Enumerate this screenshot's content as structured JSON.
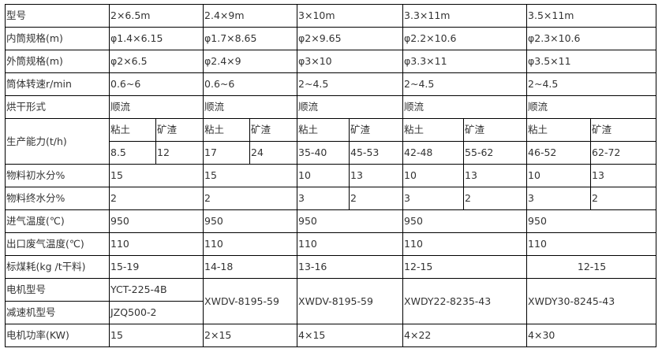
{
  "table": {
    "rows": [
      {
        "label": "型号",
        "values": [
          "2×6.5m",
          "2.4×9m",
          "3×10m",
          "3.3×11m",
          "3.5×11m"
        ]
      },
      {
        "label": "内筒规格(m)",
        "values": [
          "φ1.4×6.15",
          "φ1.7×8.65",
          "φ2×9.65",
          "φ2.2×10.6",
          "φ2.3×10.6"
        ]
      },
      {
        "label": "外筒规格(m)",
        "values": [
          "φ2×6.5",
          "φ2.4×9",
          "φ3×10",
          "φ3.3×11",
          "φ3.5×11"
        ]
      },
      {
        "label": "筒体转速r/min",
        "values": [
          "0.6~6",
          "0.6~6",
          "2~4.5",
          "2~4.5",
          "2~4.5"
        ]
      },
      {
        "label": "烘干形式",
        "values": [
          "顺流",
          "顺流",
          "顺流",
          "顺流",
          "顺流"
        ]
      },
      {
        "label": "生产能力(t/h)",
        "values": [
          "粘土",
          "矿渣",
          "粘土",
          "矿渣",
          "粘土",
          "矿渣",
          "粘土",
          "矿渣",
          "粘土",
          "矿渣"
        ]
      },
      {
        "label": "",
        "values": [
          "8.5",
          "12",
          "17",
          "24",
          "35-40",
          "45-53",
          "42-48",
          "55-62",
          "46-52",
          "62-72"
        ]
      },
      {
        "label": "物料初水分%",
        "values": [
          "15",
          "15",
          "10",
          "13",
          "10",
          "13",
          "10",
          "13"
        ]
      },
      {
        "label": "物料终水分%",
        "values": [
          "2",
          "2",
          "3",
          "2",
          "3",
          "2",
          "3",
          "2"
        ]
      },
      {
        "label": "进气温度(℃)",
        "values": [
          "950",
          "950",
          "950",
          "950",
          "950"
        ]
      },
      {
        "label": "出口废气温度(℃)",
        "values": [
          "110",
          "110",
          "110",
          "110",
          "110"
        ]
      },
      {
        "label": "标煤耗(kg /t干料)",
        "values": [
          "15-19",
          "14-18",
          "13-16",
          "12-15",
          "12-15"
        ]
      },
      {
        "label": "电机型号",
        "values": [
          "YCT-225-4B",
          "XWDV-8195-59",
          "XWDV-8195-59",
          "XWDY22-8235-43",
          "XWDY30-8245-43"
        ]
      },
      {
        "label": "减速机型号",
        "values": [
          "JZQ500-2"
        ]
      },
      {
        "label": "电机功率(KW)",
        "values": [
          "15",
          "2×15",
          "4×15",
          "4×22",
          "4×30"
        ]
      }
    ]
  }
}
